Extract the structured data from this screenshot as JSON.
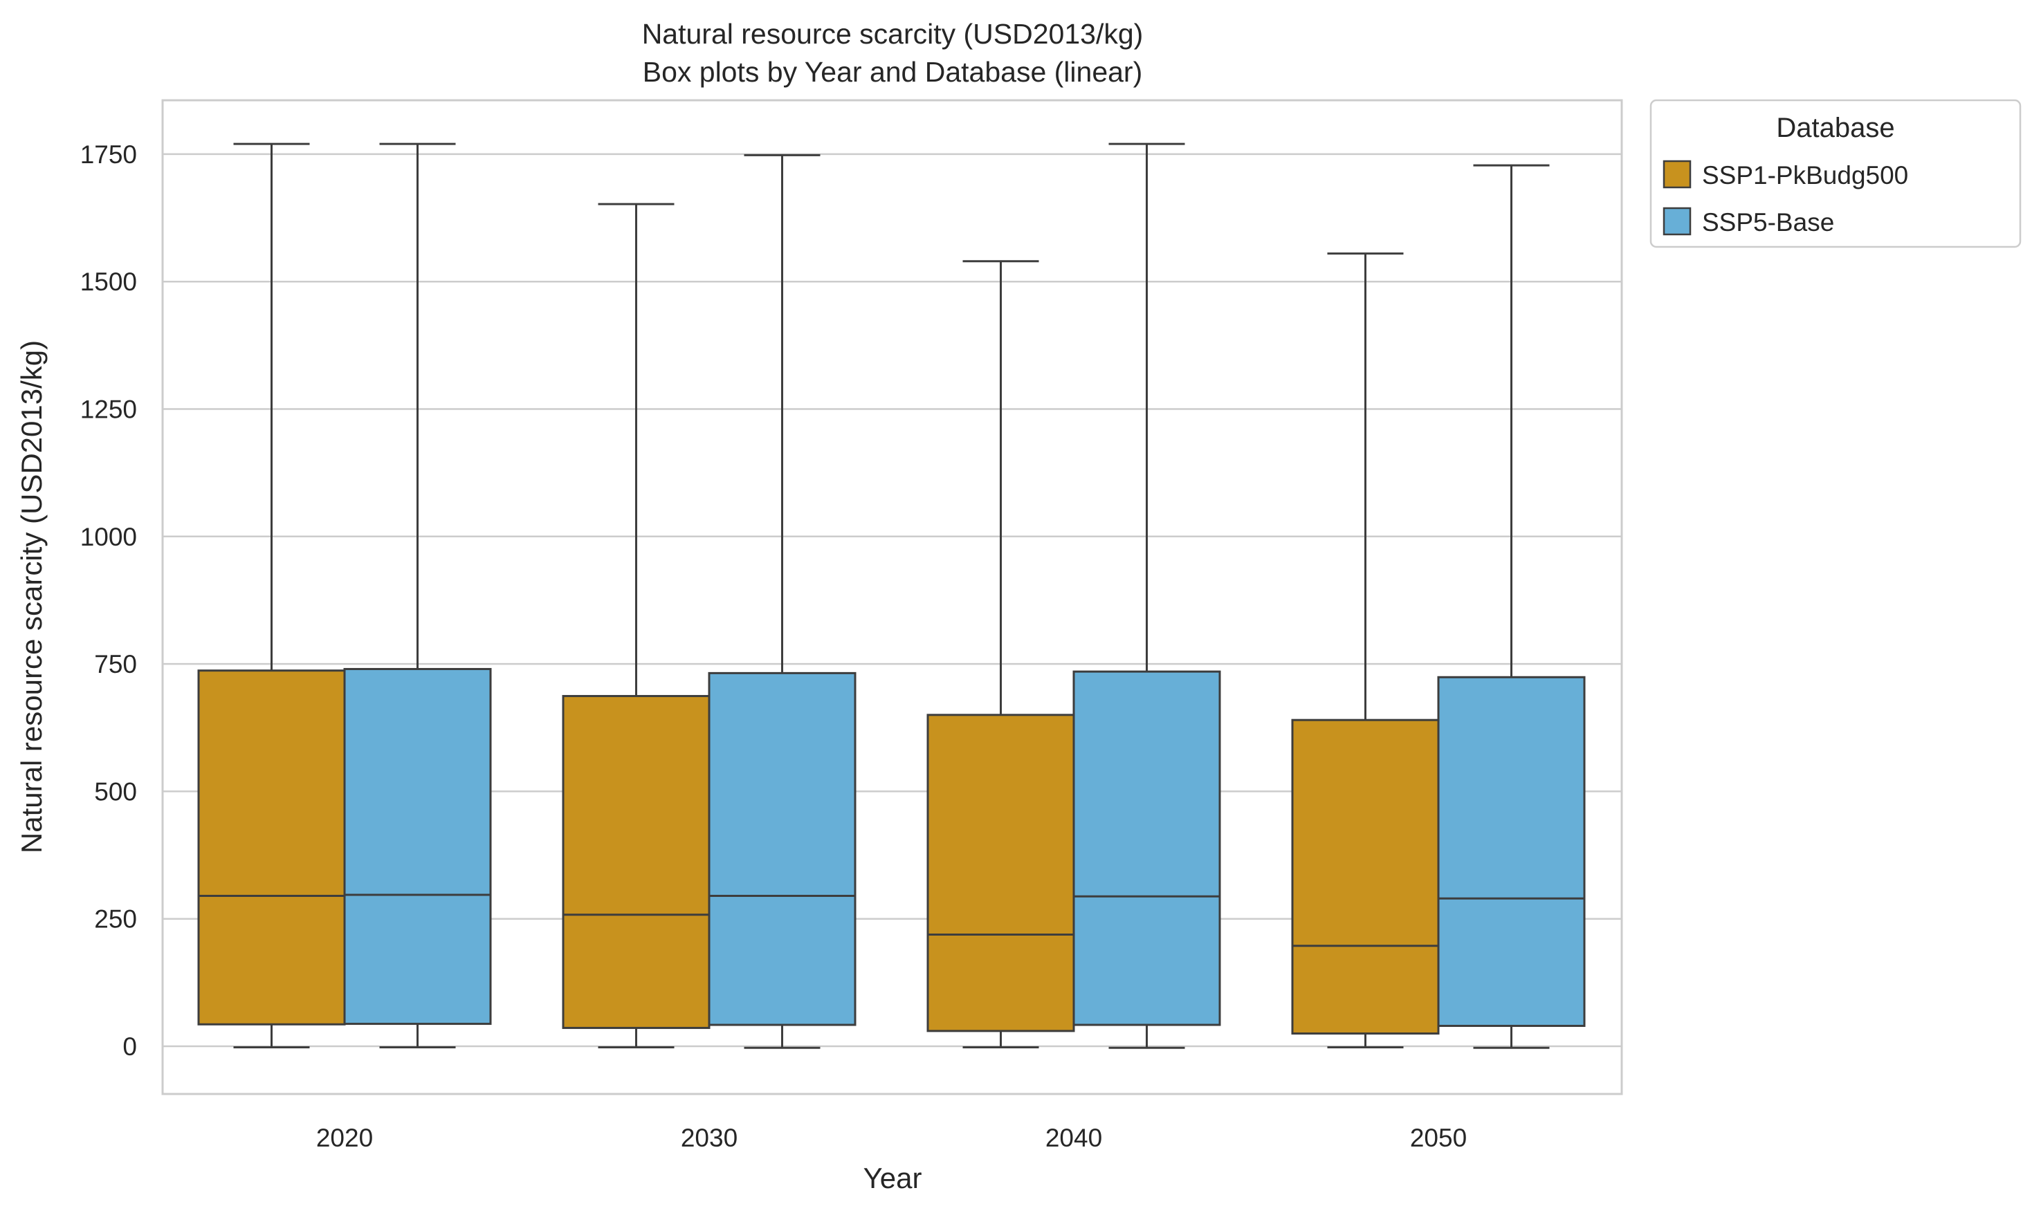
{
  "chart_data": {
    "type": "box",
    "title": "Natural resource scarcity (USD2013/kg)",
    "subtitle": "Box plots by Year and Database (linear)",
    "xlabel": "Year",
    "ylabel": "Natural resource scarcity (USD2013/kg)",
    "categories": [
      "2020",
      "2030",
      "2040",
      "2050"
    ],
    "ylim": [
      -95,
      1855
    ],
    "yticks": [
      0,
      250,
      500,
      750,
      1000,
      1250,
      1500,
      1750
    ],
    "grid": "horizontal",
    "legend": {
      "title": "Database",
      "placement": "outside-top-right"
    },
    "series": [
      {
        "name": "SSP1-PkBudg500",
        "color": "#C8921E",
        "boxes": [
          {
            "whislo": -2,
            "q1": 43,
            "med": 295,
            "q3": 737,
            "whishi": 1770
          },
          {
            "whislo": -2,
            "q1": 36,
            "med": 258,
            "q3": 687,
            "whishi": 1652
          },
          {
            "whislo": -2,
            "q1": 30,
            "med": 219,
            "q3": 650,
            "whishi": 1540
          },
          {
            "whislo": -2,
            "q1": 25,
            "med": 197,
            "q3": 640,
            "whishi": 1555
          }
        ]
      },
      {
        "name": "SSP5-Base",
        "color": "#67AFD7",
        "boxes": [
          {
            "whislo": -2,
            "q1": 44,
            "med": 297,
            "q3": 740,
            "whishi": 1770
          },
          {
            "whislo": -3,
            "q1": 42,
            "med": 295,
            "q3": 732,
            "whishi": 1748
          },
          {
            "whislo": -3,
            "q1": 42,
            "med": 294,
            "q3": 735,
            "whishi": 1770
          },
          {
            "whislo": -3,
            "q1": 40,
            "med": 290,
            "q3": 724,
            "whishi": 1728
          }
        ]
      }
    ]
  }
}
